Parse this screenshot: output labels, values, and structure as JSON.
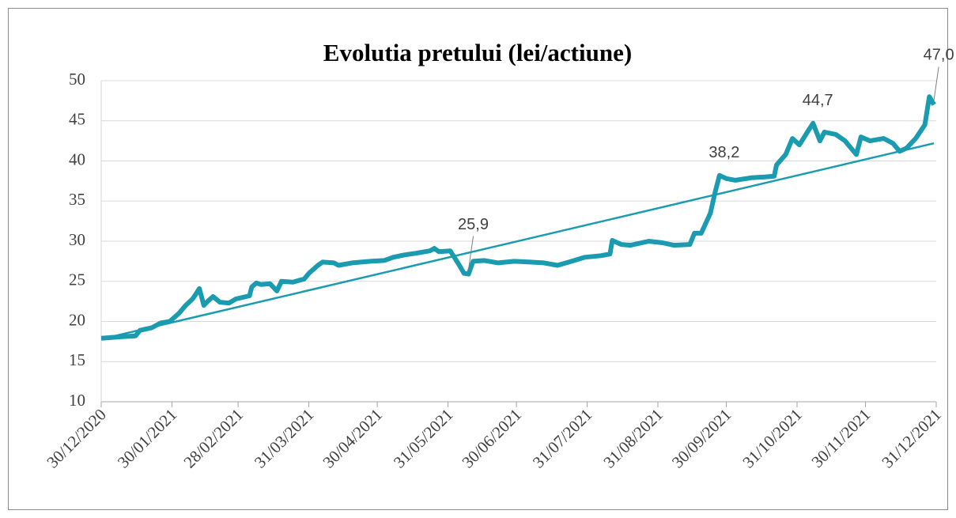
{
  "chart_data": {
    "type": "line",
    "title": "Evolutia pretului (lei/actiune)",
    "x": [
      "2020-12-30",
      "2021-01-08",
      "2021-01-14",
      "2021-01-16",
      "2021-01-21",
      "2021-01-25",
      "2021-01-29",
      "2021-02-02",
      "2021-02-05",
      "2021-02-08",
      "2021-02-09",
      "2021-02-11",
      "2021-02-13",
      "2021-02-15",
      "2021-02-17",
      "2021-02-20",
      "2021-02-24",
      "2021-02-27",
      "2021-03-02",
      "2021-03-05",
      "2021-03-06",
      "2021-03-08",
      "2021-03-10",
      "2021-03-14",
      "2021-03-17",
      "2021-03-19",
      "2021-03-24",
      "2021-03-29",
      "2021-03-31",
      "2021-04-04",
      "2021-04-06",
      "2021-04-11",
      "2021-04-13",
      "2021-04-19",
      "2021-04-27",
      "2021-05-03",
      "2021-05-07",
      "2021-05-12",
      "2021-05-17",
      "2021-05-23",
      "2021-05-25",
      "2021-05-27",
      "2021-06-01",
      "2021-06-05",
      "2021-06-07",
      "2021-06-09",
      "2021-06-11",
      "2021-06-16",
      "2021-06-22",
      "2021-06-29",
      "2021-07-06",
      "2021-07-12",
      "2021-07-18",
      "2021-07-23",
      "2021-07-30",
      "2021-08-06",
      "2021-08-10",
      "2021-08-11",
      "2021-08-15",
      "2021-08-19",
      "2021-08-27",
      "2021-09-02",
      "2021-09-07",
      "2021-09-14",
      "2021-09-16",
      "2021-09-19",
      "2021-09-23",
      "2021-09-25",
      "2021-09-27",
      "2021-09-30",
      "2021-10-04",
      "2021-10-11",
      "2021-10-17",
      "2021-10-21",
      "2021-10-22",
      "2021-10-26",
      "2021-10-29",
      "2021-11-01",
      "2021-11-05",
      "2021-11-07",
      "2021-11-10",
      "2021-11-12",
      "2021-11-17",
      "2021-11-21",
      "2021-11-26",
      "2021-11-28",
      "2021-12-02",
      "2021-12-08",
      "2021-12-12",
      "2021-12-15",
      "2021-12-18",
      "2021-12-22",
      "2021-12-26",
      "2021-12-28",
      "2021-12-30"
    ],
    "series": [
      {
        "color": "#1a9bb0",
        "values": [
          17.9,
          18.1,
          18.2,
          18.9,
          19.2,
          19.8,
          20.0,
          21.0,
          22.0,
          22.8,
          23.2,
          24.1,
          22.0,
          22.6,
          23.1,
          22.4,
          22.3,
          22.8,
          23.0,
          23.2,
          24.3,
          24.8,
          24.6,
          24.7,
          23.8,
          25.0,
          24.9,
          25.3,
          26.0,
          27.0,
          27.4,
          27.3,
          27.0,
          27.3,
          27.5,
          27.6,
          28.0,
          28.3,
          28.5,
          28.8,
          29.1,
          28.7,
          28.8,
          27.0,
          26.0,
          25.9,
          27.5,
          27.6,
          27.3,
          27.5,
          27.4,
          27.3,
          27.0,
          27.4,
          28.0,
          28.2,
          28.4,
          30.1,
          29.6,
          29.5,
          30.0,
          29.8,
          29.5,
          29.6,
          31.0,
          31.0,
          33.5,
          36.0,
          38.2,
          37.8,
          37.6,
          37.9,
          38.0,
          38.1,
          39.5,
          40.8,
          42.8,
          42.0,
          43.8,
          44.7,
          42.5,
          43.6,
          43.3,
          42.5,
          40.8,
          43.0,
          42.5,
          42.8,
          42.2,
          41.2,
          41.6,
          42.8,
          44.5,
          48.0,
          47.0
        ],
        "value_labels": [
          null,
          null,
          null,
          null,
          null,
          null,
          null,
          null,
          null,
          null,
          null,
          null,
          null,
          null,
          null,
          null,
          null,
          null,
          null,
          null,
          null,
          null,
          null,
          null,
          null,
          null,
          null,
          null,
          null,
          null,
          null,
          null,
          null,
          null,
          null,
          null,
          null,
          null,
          null,
          null,
          null,
          null,
          null,
          null,
          null,
          "25,9",
          null,
          null,
          null,
          null,
          null,
          null,
          null,
          null,
          null,
          null,
          null,
          null,
          null,
          null,
          null,
          null,
          null,
          null,
          null,
          null,
          null,
          null,
          "38,2",
          null,
          null,
          null,
          null,
          null,
          null,
          null,
          null,
          null,
          null,
          "44,7",
          null,
          null,
          null,
          null,
          null,
          null,
          null,
          null,
          null,
          null,
          null,
          null,
          null,
          null,
          "47,0"
        ]
      }
    ],
    "trendline": {
      "values": [
        17.8,
        42.2
      ],
      "color": "#1a9bb0"
    },
    "xlim": [
      "2020-12-30",
      "2021-12-31"
    ],
    "xticks": [
      {
        "value": "2020-12-30",
        "label": "30/12/2020"
      },
      {
        "value": "2021-01-30",
        "label": "30/01/2021"
      },
      {
        "value": "2021-02-28",
        "label": "28/02/2021"
      },
      {
        "value": "2021-03-31",
        "label": "31/03/2021"
      },
      {
        "value": "2021-04-30",
        "label": "30/04/2021"
      },
      {
        "value": "2021-05-31",
        "label": "31/05/2021"
      },
      {
        "value": "2021-06-30",
        "label": "30/06/2021"
      },
      {
        "value": "2021-07-31",
        "label": "31/07/2021"
      },
      {
        "value": "2021-08-31",
        "label": "31/08/2021"
      },
      {
        "value": "2021-09-30",
        "label": "30/09/2021"
      },
      {
        "value": "2021-10-31",
        "label": "31/10/2021"
      },
      {
        "value": "2021-11-30",
        "label": "30/11/2021"
      },
      {
        "value": "2021-12-31",
        "label": "31/12/2021"
      }
    ],
    "ylim": [
      10,
      50
    ],
    "yticks": [
      10,
      15,
      20,
      25,
      30,
      35,
      40,
      45,
      50
    ],
    "grid": true
  }
}
